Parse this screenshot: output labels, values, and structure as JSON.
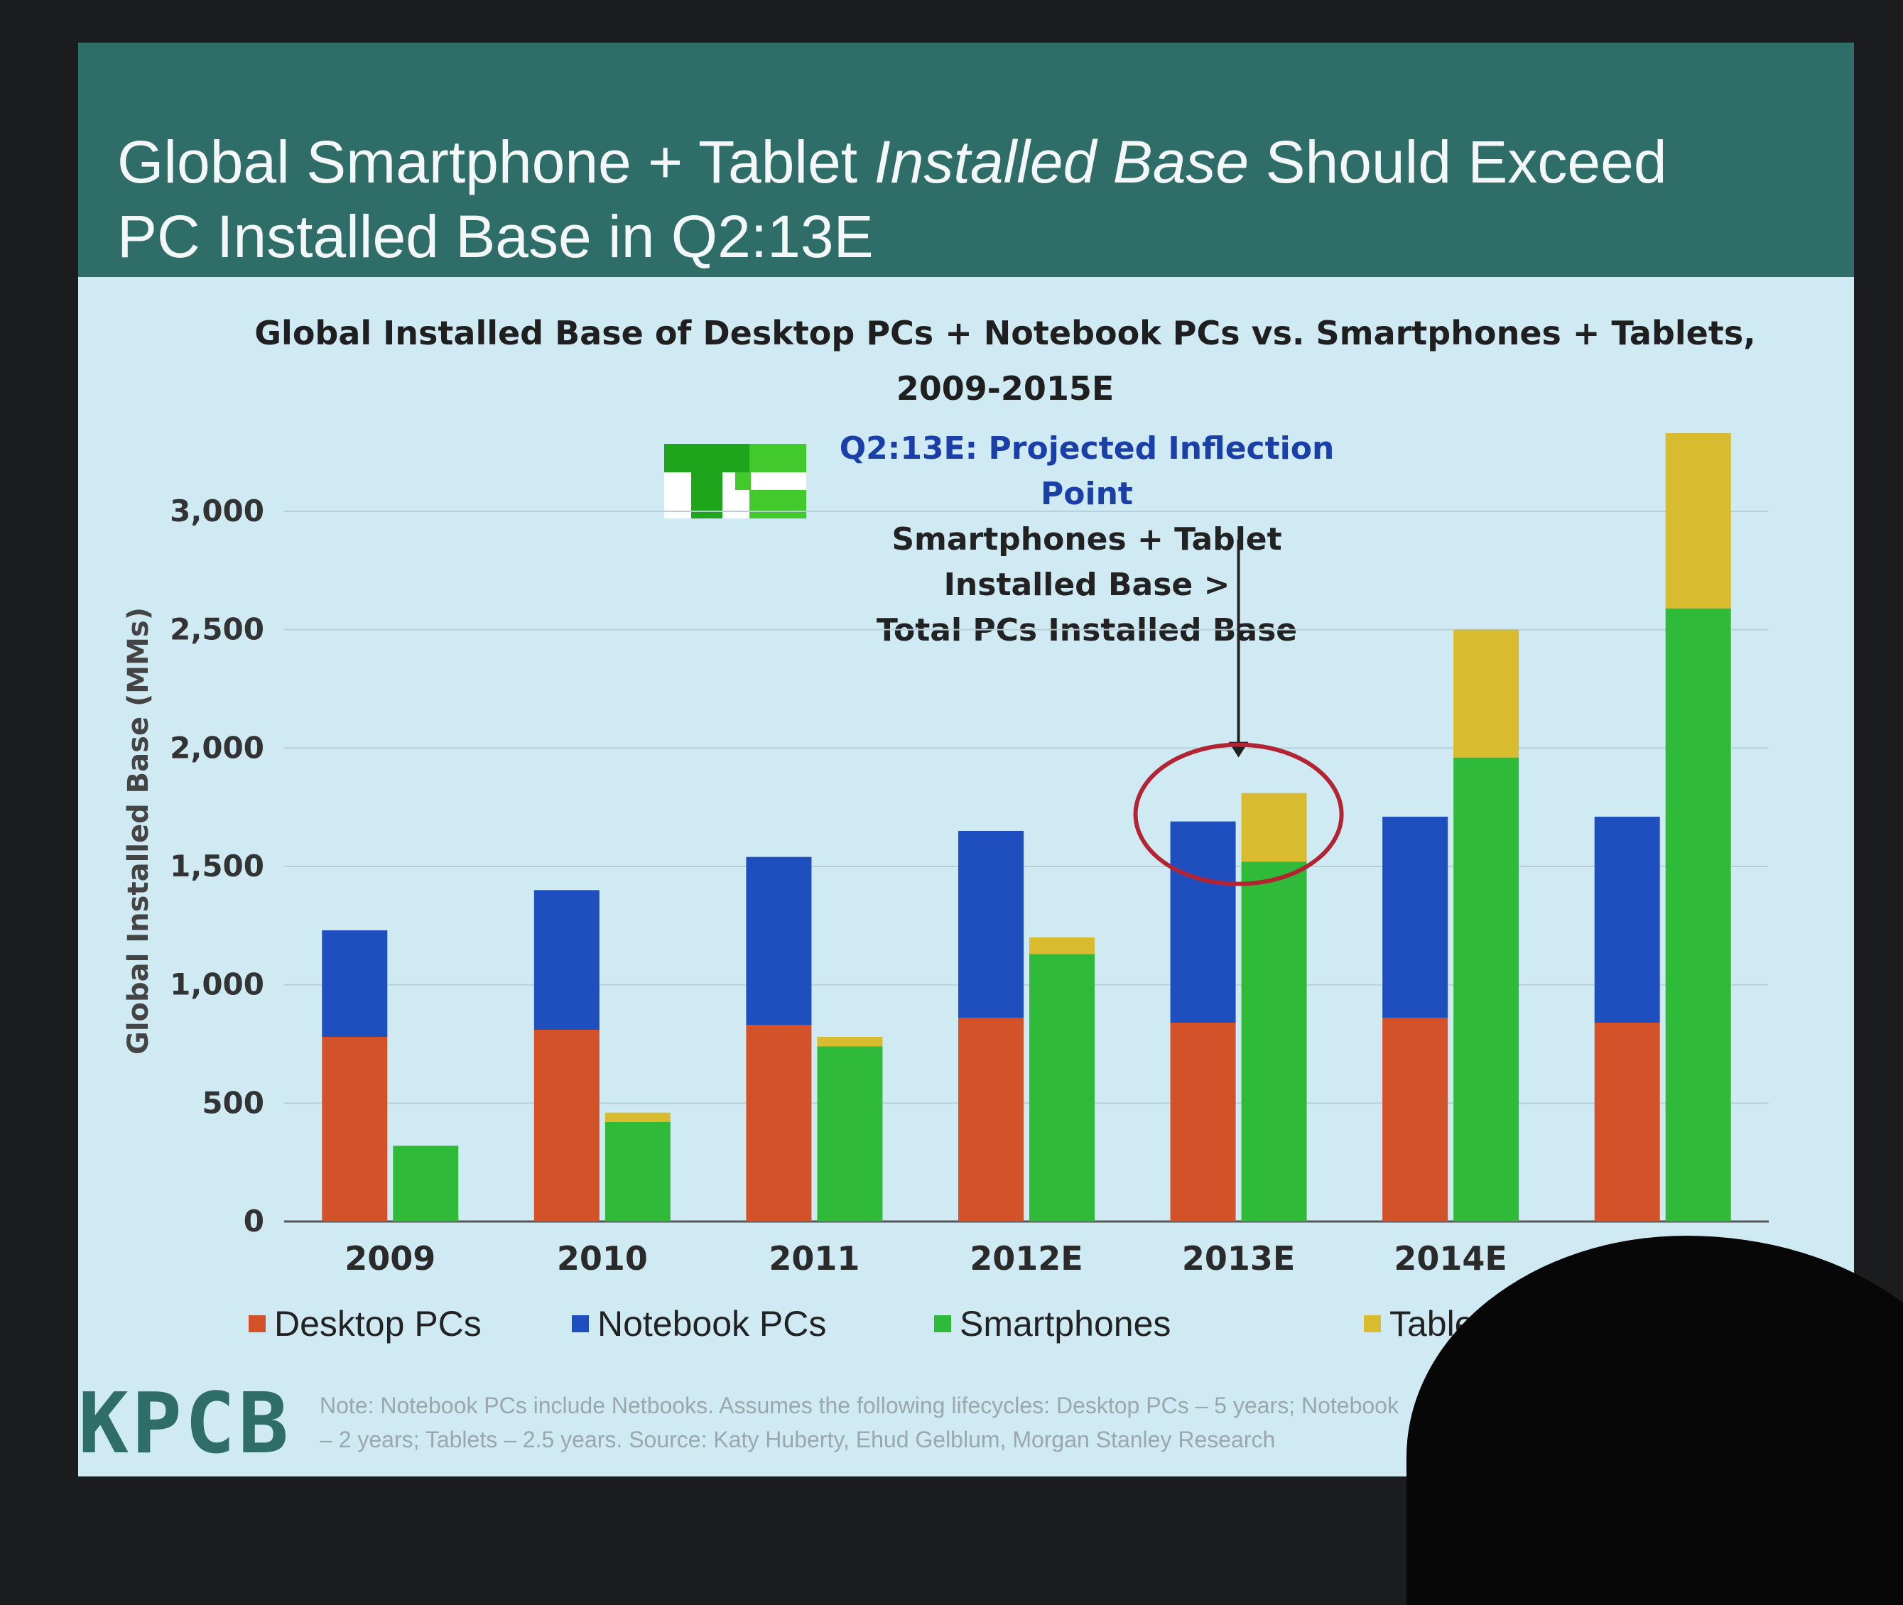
{
  "slide": {
    "title_line1": "Global Smartphone + Tablet ",
    "title_line1_em": "Installed Base",
    "title_line1_tail": " Should Exceed",
    "title_line2": "PC Installed Base in Q2:13E",
    "logo": "KPCB",
    "tc_logo": "TC",
    "footnote_line1": "Note: Notebook PCs include Netbooks. Assumes the following lifecycles: Desktop PCs – 5 years; Notebook",
    "footnote_line2": "– 2 years; Tablets – 2.5 years. Source: Katy Huberty, Ehud Gelblum, Morgan Stanley Research"
  },
  "annotation": {
    "heading": "Q2:13E: Projected Inflection Point",
    "line1": "Smartphones + Tablet Installed Base >",
    "line2": "Total PCs Installed Base"
  },
  "chart_data": {
    "type": "bar",
    "stacked": true,
    "title_line1": "Global Installed Base of Desktop PCs + Notebook PCs vs. Smartphones + Tablets,",
    "title_line2": "2009-2015E",
    "ylabel": "Global Installed Base (MMs)",
    "xlabel": "",
    "ylim": [
      0,
      3000
    ],
    "yticks": [
      0,
      500,
      1000,
      1500,
      2000,
      2500,
      3000
    ],
    "ytick_labels": [
      "0",
      "500",
      "1,000",
      "1,500",
      "2,000",
      "2,500",
      "3,000"
    ],
    "categories": [
      "2009",
      "2010",
      "2011",
      "2012E",
      "2013E",
      "2014E",
      "2015E"
    ],
    "category_labels": [
      "2009",
      "2010",
      "2011",
      "2012E",
      "2013E",
      "2014E",
      ""
    ],
    "grid": true,
    "legend_position": "bottom",
    "stacks": [
      {
        "stack": "PCs",
        "series": [
          {
            "name": "Desktop PCs",
            "color": "#d4522a",
            "values": [
              780,
              810,
              830,
              860,
              840,
              860,
              840
            ]
          },
          {
            "name": "Notebook PCs",
            "color": "#1f4fbf",
            "values": [
              450,
              590,
              710,
              790,
              850,
              850,
              870
            ]
          }
        ]
      },
      {
        "stack": "Mobile",
        "series": [
          {
            "name": "Smartphones",
            "color": "#2fba3a",
            "values": [
              320,
              420,
              740,
              1130,
              1520,
              1960,
              2590
            ]
          },
          {
            "name": "Tablets",
            "color": "#d8bb2e",
            "values": [
              0,
              40,
              40,
              70,
              290,
              540,
              740
            ]
          }
        ]
      }
    ],
    "legend": [
      "Desktop PCs",
      "Notebook PCs",
      "Smartphones",
      "Tablets"
    ]
  }
}
